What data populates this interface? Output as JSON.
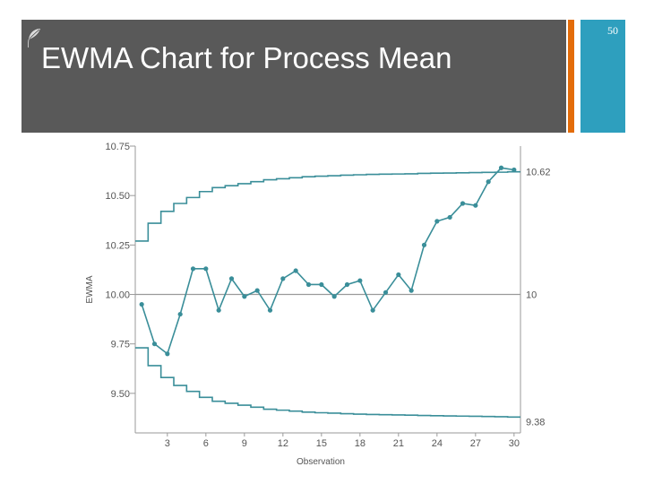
{
  "slide": {
    "title": "EWMA Chart for Process Mean",
    "page_number": "50"
  },
  "colors": {
    "header_band": "#595959",
    "orange_accent": "#e36c0a",
    "blue_panel": "#2e9fbe",
    "series": "#3a8e99",
    "center_line": "#9a9a9a"
  },
  "icons": [
    "leaf-icon"
  ],
  "chart_data": {
    "type": "line",
    "title": "",
    "xlabel": "Observation",
    "ylabel": "EWMA",
    "xlim": [
      0.5,
      30.5
    ],
    "ylim": [
      9.3,
      10.75
    ],
    "grid": false,
    "x_ticks": [
      3,
      6,
      9,
      12,
      15,
      18,
      21,
      24,
      27,
      30
    ],
    "y_ticks": [
      9.5,
      9.75,
      10.0,
      10.25,
      10.5,
      10.75
    ],
    "y_tick_labels": [
      "9.50",
      "9.75",
      "10.00",
      "10.25",
      "10.50",
      "10.75"
    ],
    "center_line": {
      "value": 10,
      "label": "10"
    },
    "ucl": {
      "label": "10.62",
      "values": [
        10.27,
        10.36,
        10.42,
        10.46,
        10.49,
        10.52,
        10.54,
        10.55,
        10.56,
        10.57,
        10.58,
        10.585,
        10.59,
        10.595,
        10.598,
        10.6,
        10.603,
        10.605,
        10.607,
        10.608,
        10.609,
        10.61,
        10.612,
        10.613,
        10.614,
        10.615,
        10.616,
        10.617,
        10.618,
        10.62
      ]
    },
    "lcl": {
      "label": "9.38",
      "values": [
        9.73,
        9.64,
        9.58,
        9.54,
        9.51,
        9.48,
        9.46,
        9.45,
        9.44,
        9.43,
        9.42,
        9.415,
        9.41,
        9.405,
        9.402,
        9.4,
        9.397,
        9.395,
        9.393,
        9.392,
        9.391,
        9.39,
        9.388,
        9.387,
        9.386,
        9.385,
        9.384,
        9.383,
        9.382,
        9.38
      ]
    },
    "series": [
      {
        "x": [
          1,
          2,
          3,
          4,
          5,
          6,
          7,
          8,
          9,
          10,
          11,
          12,
          13,
          14,
          15,
          16,
          17,
          18,
          19,
          20,
          21,
          22,
          23,
          24,
          25,
          26,
          27,
          28,
          29,
          30
        ],
        "values": [
          9.95,
          9.75,
          9.7,
          9.9,
          10.13,
          10.13,
          9.92,
          10.08,
          9.99,
          10.02,
          9.92,
          10.08,
          10.12,
          10.05,
          10.05,
          9.99,
          10.05,
          10.07,
          9.92,
          10.01,
          10.1,
          10.02,
          10.25,
          10.37,
          10.39,
          10.46,
          10.45,
          10.57,
          10.64,
          10.63
        ]
      }
    ]
  }
}
